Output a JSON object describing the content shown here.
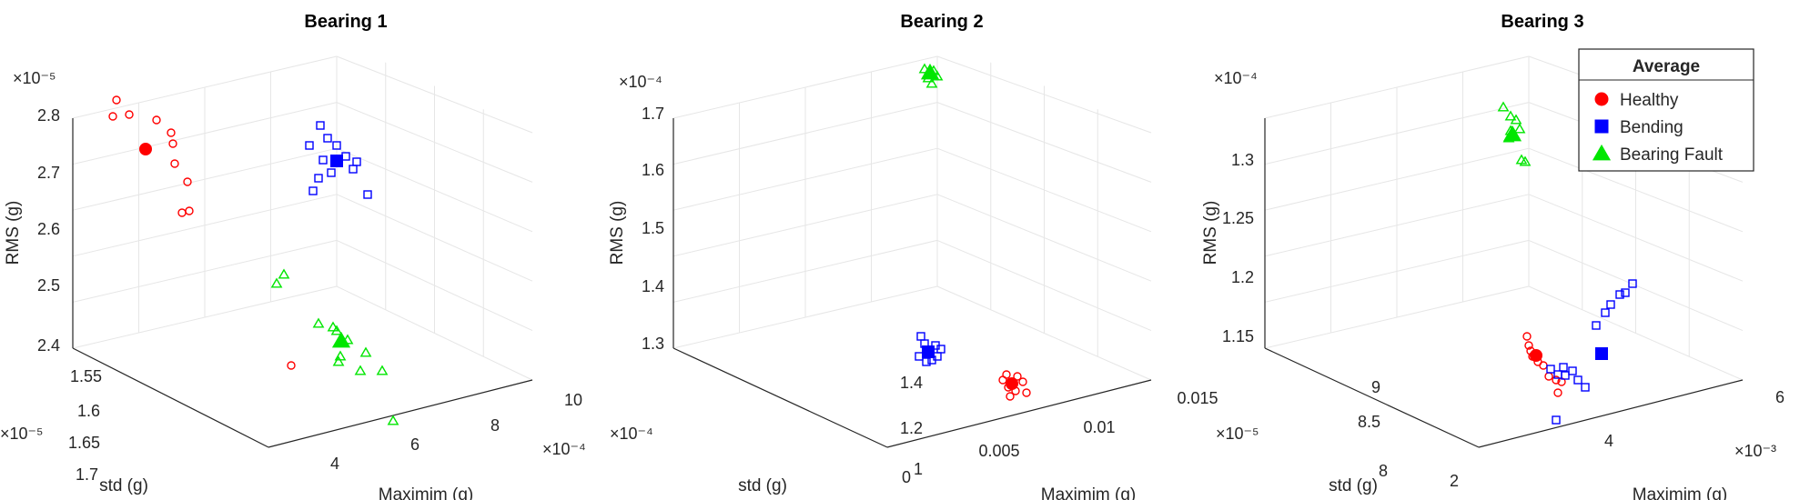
{
  "chart_data": [
    {
      "type": "scatter",
      "title": "Bearing 1",
      "xlabel": "Maximim (g)",
      "ylabel": "std (g)",
      "zlabel": "RMS (g)",
      "x_exponent": "×10⁻⁴",
      "y_exponent": "×10⁻⁵",
      "z_exponent": "×10⁻⁵",
      "x_ticks": [
        "4",
        "6",
        "8",
        "10"
      ],
      "y_ticks": [
        "1.55",
        "1.6",
        "1.65",
        "1.7"
      ],
      "z_ticks": [
        "2.4",
        "2.5",
        "2.6",
        "2.7",
        "2.8"
      ],
      "series": [
        {
          "name": "Healthy",
          "average": [
            [
              160,
              164
            ]
          ],
          "points": [
            [
              128,
              110
            ],
            [
              124,
              128
            ],
            [
              142,
              126
            ],
            [
              172,
              132
            ],
            [
              188,
              146
            ],
            [
              190,
              158
            ],
            [
              192,
              180
            ],
            [
              206,
              200
            ],
            [
              200,
              234
            ],
            [
              208,
              232
            ],
            [
              320,
              402
            ]
          ]
        },
        {
          "name": "Bending",
          "average": [
            [
              370,
              177
            ]
          ],
          "points": [
            [
              352,
              138
            ],
            [
              360,
              152
            ],
            [
              340,
              160
            ],
            [
              370,
              160
            ],
            [
              380,
              172
            ],
            [
              355,
              176
            ],
            [
              350,
              196
            ],
            [
              364,
              190
            ],
            [
              392,
              178
            ],
            [
              388,
              186
            ],
            [
              344,
              210
            ],
            [
              404,
              214
            ]
          ]
        },
        {
          "name": "Bearing Fault",
          "average": [
            [
              375,
              375
            ]
          ],
          "points": [
            [
              312,
              302
            ],
            [
              304,
              312
            ],
            [
              350,
              356
            ],
            [
              366,
              360
            ],
            [
              370,
              364
            ],
            [
              382,
              374
            ],
            [
              374,
              392
            ],
            [
              402,
              388
            ],
            [
              396,
              408
            ],
            [
              420,
              408
            ],
            [
              372,
              398
            ],
            [
              432,
              463
            ]
          ]
        }
      ]
    },
    {
      "type": "scatter",
      "title": "Bearing 2",
      "xlabel": "Maximim (g)",
      "ylabel": "std (g)",
      "zlabel": "RMS (g)",
      "x_exponent": "",
      "y_exponent": "×10⁻⁴",
      "z_exponent": "×10⁻⁴",
      "x_ticks": [
        "0",
        "0.005",
        "0.01",
        "0.015"
      ],
      "y_ticks": [
        "1",
        "1.2",
        "1.4"
      ],
      "z_ticks": [
        "1.3",
        "1.4",
        "1.5",
        "1.6",
        "1.7"
      ],
      "series": [
        {
          "name": "Healthy",
          "average": [
            [
              1112,
              422
            ]
          ],
          "points": [
            [
              1106,
              412
            ],
            [
              1118,
              414
            ],
            [
              1124,
              420
            ],
            [
              1108,
              426
            ],
            [
              1116,
              430
            ],
            [
              1128,
              432
            ],
            [
              1102,
              418
            ],
            [
              1110,
              436
            ]
          ]
        },
        {
          "name": "Bending",
          "average": [
            [
              1020,
              387
            ]
          ],
          "points": [
            [
              1012,
              370
            ],
            [
              1016,
              378
            ],
            [
              1028,
              380
            ],
            [
              1034,
              384
            ],
            [
              1010,
              392
            ],
            [
              1024,
              396
            ],
            [
              1030,
              392
            ],
            [
              1018,
              398
            ]
          ]
        },
        {
          "name": "Bearing Fault",
          "average": [
            [
              1022,
              80
            ]
          ],
          "points": [
            [
              1016,
              76
            ],
            [
              1026,
              78
            ],
            [
              1020,
              86
            ],
            [
              1030,
              84
            ],
            [
              1024,
              92
            ]
          ]
        }
      ]
    },
    {
      "type": "scatter",
      "title": "Bearing 3",
      "xlabel": "Maximim (g)",
      "ylabel": "std (g)",
      "zlabel": "RMS (g)",
      "x_exponent": "×10⁻³",
      "y_exponent": "×10⁻⁵",
      "z_exponent": "×10⁻⁴",
      "x_ticks": [
        "2",
        "4",
        "6"
      ],
      "y_ticks": [
        "8",
        "8.5",
        "9"
      ],
      "z_ticks": [
        "1.15",
        "1.2",
        "1.25",
        "1.3"
      ],
      "series": [
        {
          "name": "Healthy",
          "average": [
            [
              1688,
              391
            ]
          ],
          "points": [
            [
              1680,
              380
            ],
            [
              1682,
              386
            ],
            [
              1684,
              392
            ],
            [
              1690,
              398
            ],
            [
              1696,
              402
            ],
            [
              1702,
              414
            ],
            [
              1710,
              418
            ],
            [
              1716,
              420
            ],
            [
              1712,
              432
            ],
            [
              1678,
              370
            ]
          ]
        },
        {
          "name": "Bending",
          "average": [
            [
              1760,
              389
            ]
          ],
          "points": [
            [
              1718,
              404
            ],
            [
              1712,
              412
            ],
            [
              1728,
              408
            ],
            [
              1734,
              418
            ],
            [
              1742,
              426
            ],
            [
              1704,
              406
            ],
            [
              1754,
              358
            ],
            [
              1764,
              344
            ],
            [
              1770,
              335
            ],
            [
              1780,
              324
            ],
            [
              1786,
              322
            ],
            [
              1794,
              312
            ],
            [
              1720,
              413
            ],
            [
              1710,
              462
            ]
          ]
        },
        {
          "name": "Bearing Fault",
          "average": [
            [
              1662,
              148
            ]
          ],
          "points": [
            [
              1652,
              118
            ],
            [
              1660,
              128
            ],
            [
              1666,
              132
            ],
            [
              1670,
              142
            ],
            [
              1660,
              144
            ],
            [
              1664,
              148
            ],
            [
              1658,
              152
            ],
            [
              1672,
              176
            ],
            [
              1676,
              178
            ]
          ]
        }
      ]
    }
  ],
  "legend": {
    "title": "Average",
    "entries": [
      {
        "label": "Healthy",
        "color": "#ff0000",
        "marker": "circle"
      },
      {
        "label": "Bending",
        "color": "#0000ff",
        "marker": "square"
      },
      {
        "label": "Bearing Fault",
        "color": "#00e600",
        "marker": "triangle"
      }
    ]
  },
  "colors": {
    "Healthy": "#ff0000",
    "Bending": "#0000ff",
    "Bearing Fault": "#00e600"
  }
}
